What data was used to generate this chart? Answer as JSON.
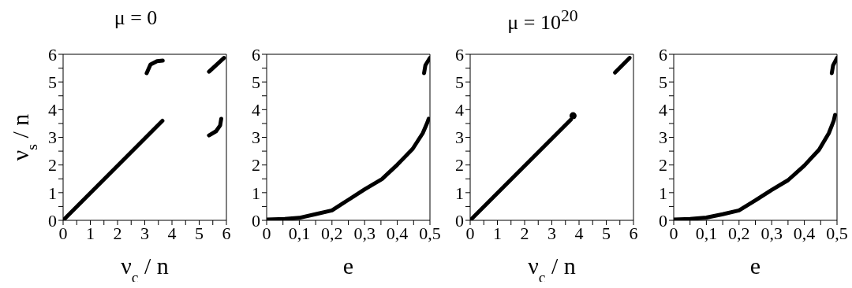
{
  "chart_data": [
    {
      "type": "line",
      "title": "μ = 0",
      "xlabel": "ν$_{c}$ / n",
      "ylabel": "ν$_{s}$ / n",
      "xlim": [
        0,
        6
      ],
      "ylim": [
        0,
        6
      ],
      "xticks": [
        0,
        {
          "value": 0.5,
          "label": null
        },
        1,
        {
          "value": 1.5,
          "label": null
        },
        2,
        {
          "value": 2.5,
          "label": null
        },
        3,
        {
          "value": 3.5,
          "label": null
        },
        4,
        {
          "value": 4.5,
          "label": null
        },
        5,
        {
          "value": 5.5,
          "label": null
        },
        6
      ],
      "yticks": [
        0,
        {
          "value": 0.5,
          "label": null
        },
        1,
        {
          "value": 1.5,
          "label": null
        },
        2,
        {
          "value": 2.5,
          "label": null
        },
        3,
        {
          "value": 3.5,
          "label": null
        },
        4,
        {
          "value": 4.5,
          "label": null
        },
        5,
        {
          "value": 5.5,
          "label": null
        },
        6
      ],
      "marker": "none",
      "line_style": "solid",
      "series": [
        {
          "color": "#000000",
          "x": [
            0,
            3.65
          ],
          "values": [
            0,
            3.6
          ]
        },
        {
          "color": "#000000",
          "x": [
            3.07,
            3.21,
            3.45,
            3.66
          ],
          "values": [
            5.32,
            5.63,
            5.75,
            5.77
          ]
        },
        {
          "color": "#000000",
          "x": [
            5.36,
            5.91
          ],
          "values": [
            5.37,
            5.87
          ]
        },
        {
          "color": "#000000",
          "x": [
            5.36,
            5.62,
            5.77,
            5.81
          ],
          "values": [
            3.07,
            3.22,
            3.43,
            3.67
          ]
        }
      ]
    },
    {
      "type": "line",
      "xlabel": "e",
      "xlim": [
        0,
        0.5
      ],
      "ylim": [
        0,
        6
      ],
      "xticks": [
        0,
        {
          "value": 0.05,
          "label": null
        },
        {
          "value": 0.1,
          "label": "0,1"
        },
        {
          "value": 0.15,
          "label": null
        },
        {
          "value": 0.2,
          "label": "0,2"
        },
        {
          "value": 0.25,
          "label": null
        },
        {
          "value": 0.3,
          "label": "0,3"
        },
        {
          "value": 0.35,
          "label": null
        },
        {
          "value": 0.4,
          "label": "0,4"
        },
        {
          "value": 0.45,
          "label": null
        },
        {
          "value": 0.5,
          "label": "0,5"
        }
      ],
      "yticks": [
        0,
        {
          "value": 0.5,
          "label": null
        },
        1,
        {
          "value": 1.5,
          "label": null
        },
        2,
        {
          "value": 2.5,
          "label": null
        },
        3,
        {
          "value": 3.5,
          "label": null
        },
        4,
        {
          "value": 4.5,
          "label": null
        },
        5,
        {
          "value": 5.5,
          "label": null
        },
        6
      ],
      "marker": "none",
      "line_style": "solid",
      "series": [
        {
          "color": "#000000",
          "x": [
            0,
            0.055,
            0.1,
            0.149,
            0.2,
            0.25,
            0.3,
            0.353,
            0.4,
            0.447,
            0.478,
            0.492,
            0.496
          ],
          "values": [
            0.03,
            0.05,
            0.09,
            0.22,
            0.36,
            0.74,
            1.12,
            1.49,
            2.01,
            2.58,
            3.15,
            3.53,
            3.67
          ]
        },
        {
          "color": "#000000",
          "x": [
            0.482,
            0.486,
            0.5
          ],
          "values": [
            5.32,
            5.6,
            5.87
          ]
        }
      ]
    },
    {
      "type": "line",
      "title": "μ = 10$^{20}$",
      "xlabel": "ν$_{c}$ / n",
      "xlim": [
        0,
        6
      ],
      "ylim": [
        0,
        6
      ],
      "xticks": [
        0,
        {
          "value": 0.5,
          "label": null
        },
        1,
        {
          "value": 1.5,
          "label": null
        },
        2,
        {
          "value": 2.5,
          "label": null
        },
        3,
        {
          "value": 3.5,
          "label": null
        },
        4,
        {
          "value": 4.5,
          "label": null
        },
        5,
        {
          "value": 5.5,
          "label": null
        },
        6
      ],
      "yticks": [
        0,
        {
          "value": 0.5,
          "label": null
        },
        1,
        {
          "value": 1.5,
          "label": null
        },
        2,
        {
          "value": 2.5,
          "label": null
        },
        3,
        {
          "value": 3.5,
          "label": null
        },
        4,
        {
          "value": 4.5,
          "label": null
        },
        5,
        {
          "value": 5.5,
          "label": null
        },
        6
      ],
      "marker": "none",
      "line_style": "solid",
      "series": [
        {
          "color": "#000000",
          "x": [
            0,
            3.7
          ],
          "values": [
            0,
            3.64
          ]
        },
        {
          "color": "#000000",
          "type": "scatter",
          "marker": "circle",
          "x": [
            3.78
          ],
          "values": [
            3.78
          ]
        },
        {
          "color": "#000000",
          "x": [
            5.32,
            5.86
          ],
          "values": [
            5.34,
            5.87
          ]
        }
      ]
    },
    {
      "type": "line",
      "xlabel": "e",
      "xlim": [
        0,
        0.5
      ],
      "ylim": [
        0,
        6
      ],
      "xticks": [
        0,
        {
          "value": 0.05,
          "label": null
        },
        {
          "value": 0.1,
          "label": "0,1"
        },
        {
          "value": 0.15,
          "label": null
        },
        {
          "value": 0.2,
          "label": "0,2"
        },
        {
          "value": 0.25,
          "label": null
        },
        {
          "value": 0.3,
          "label": "0,3"
        },
        {
          "value": 0.35,
          "label": null
        },
        {
          "value": 0.4,
          "label": "0,4"
        },
        {
          "value": 0.45,
          "label": null
        },
        {
          "value": 0.5,
          "label": "0,5"
        }
      ],
      "yticks": [
        0,
        {
          "value": 0.5,
          "label": null
        },
        1,
        {
          "value": 1.5,
          "label": null
        },
        2,
        {
          "value": 2.5,
          "label": null
        },
        3,
        {
          "value": 3.5,
          "label": null
        },
        4,
        {
          "value": 4.5,
          "label": null
        },
        5,
        {
          "value": 5.5,
          "label": null
        },
        6
      ],
      "marker": "none",
      "line_style": "solid",
      "series": [
        {
          "color": "#000000",
          "x": [
            0,
            0.05,
            0.1,
            0.15,
            0.2,
            0.25,
            0.3,
            0.35,
            0.4,
            0.445,
            0.475,
            0.49,
            0.494
          ],
          "values": [
            0.03,
            0.05,
            0.1,
            0.22,
            0.36,
            0.72,
            1.1,
            1.45,
            1.98,
            2.55,
            3.15,
            3.6,
            3.81
          ]
        },
        {
          "color": "#000000",
          "x": [
            0.484,
            0.488,
            0.5
          ],
          "values": [
            5.32,
            5.6,
            5.87
          ]
        }
      ]
    }
  ]
}
